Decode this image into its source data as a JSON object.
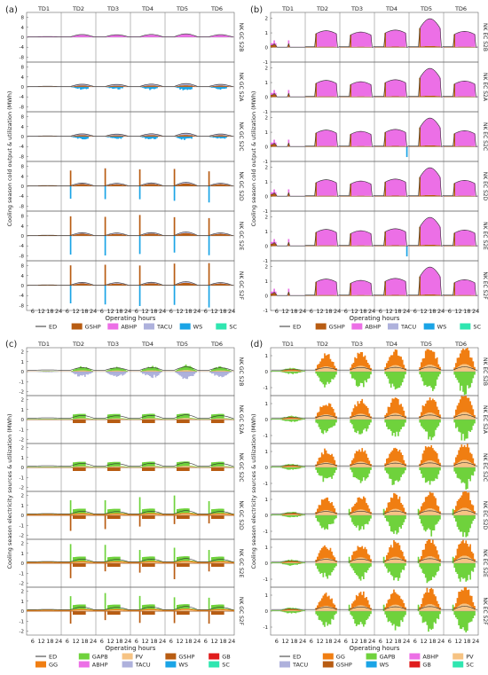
{
  "colors": {
    "ED": "#333333",
    "GSHP": "#b85c12",
    "ABHP": "#ec6fe6",
    "TACU": "#aeb1dc",
    "WS": "#1aa4e6",
    "SC": "#2fe6b0",
    "GAPB": "#6fd23c",
    "PV": "#f6c383",
    "GB": "#e01c1c",
    "GG": "#f07e12"
  },
  "chart_data": [
    {
      "panel_label": "(a)",
      "type": "area",
      "ylabel": "Cooling season cold output & utilization (MWh)",
      "xlabel": "Operating hours",
      "days": [
        "TD1",
        "TD2",
        "TD3",
        "TD4",
        "TD5",
        "TD6"
      ],
      "x_ticks": [
        "6",
        "12",
        "18",
        "24",
        "6",
        "12",
        "18",
        "24",
        "6",
        "12",
        "18",
        "24",
        "6",
        "12",
        "18",
        "24",
        "6",
        "12",
        "18",
        "24",
        "6",
        "12",
        "18",
        "24"
      ],
      "y_ticks": [
        "8",
        "4",
        "0",
        "-4",
        "-8"
      ],
      "ylim": [
        -10,
        10
      ],
      "rows": [
        "NK GC S2B",
        "NK GC S2A",
        "NK GC S2C",
        "NK GC S2D",
        "NK GC S2E",
        "NK GC S2F"
      ],
      "legend": [
        "ED",
        "GSHP",
        "ABHP",
        "TACU",
        "WS",
        "SC"
      ]
    },
    {
      "panel_label": "(b)",
      "type": "area",
      "ylabel": "Cooling season cold output & utilization (MWh)",
      "xlabel": "Operating hours",
      "days": [
        "TD1",
        "TD2",
        "TD3",
        "TD4",
        "TD5",
        "TD6"
      ],
      "x_ticks": [
        "6",
        "12",
        "18",
        "24",
        "6",
        "12",
        "18",
        "24",
        "6",
        "12",
        "18",
        "24",
        "6",
        "12",
        "18",
        "24",
        "6",
        "12",
        "18",
        "24",
        "6",
        "12",
        "18",
        "24"
      ],
      "y_ticks": [
        "2",
        "1",
        "0",
        "-1"
      ],
      "ylim": [
        -1,
        2.4
      ],
      "rows": [
        "NK EC S2B",
        "NK EC S2A",
        "NK EC S2C",
        "NK EC S2D",
        "NK EC S2E",
        "NK EC S2F"
      ],
      "legend": [
        "ED",
        "GSHP",
        "ABHP",
        "TACU",
        "WS",
        "SC"
      ]
    },
    {
      "panel_label": "(c)",
      "type": "area",
      "ylabel": "Cooling season electricity sources & utilization (MWh)",
      "xlabel": "Operating hours",
      "days": [
        "TD1",
        "TD2",
        "TD3",
        "TD4",
        "TD5",
        "TD6"
      ],
      "x_ticks": [
        "6",
        "12",
        "18",
        "24",
        "6",
        "12",
        "18",
        "24",
        "6",
        "12",
        "18",
        "24",
        "6",
        "12",
        "18",
        "24",
        "6",
        "12",
        "18",
        "24",
        "6",
        "12",
        "18",
        "24"
      ],
      "y_ticks": [
        "2",
        "1",
        "0",
        "-1",
        "-2"
      ],
      "ylim": [
        -2.4,
        2.4
      ],
      "rows": [
        "NK GC S2B",
        "NK GC S2A",
        "NK GC S2C",
        "NK GC S2D",
        "NK GC S2E",
        "NK GC S2F"
      ],
      "legend": [
        "ED",
        "GAPB",
        "PV",
        "GSHP",
        "GB",
        "GG",
        "ABHP",
        "TACU",
        "WS",
        "SC"
      ]
    },
    {
      "panel_label": "(d)",
      "type": "area",
      "ylabel": "Cooling season electricity sources & utilization (MWh)",
      "xlabel": "Operating hours",
      "days": [
        "TD1",
        "TD2",
        "TD3",
        "TD4",
        "TD5",
        "TD6"
      ],
      "x_ticks": [
        "6",
        "12",
        "18",
        "24",
        "6",
        "12",
        "18",
        "24",
        "6",
        "12",
        "18",
        "24",
        "6",
        "12",
        "18",
        "24",
        "6",
        "12",
        "18",
        "24",
        "6",
        "12",
        "18",
        "24"
      ],
      "y_ticks": [
        "1",
        "0",
        "-1"
      ],
      "ylim": [
        -1.5,
        1.5
      ],
      "rows": [
        "NK EC S2B",
        "NK EC S2A",
        "NK EC S2C",
        "NK EC S2D",
        "NK EC S2E",
        "NK EC S2F"
      ],
      "legend": [
        "ED",
        "GG",
        "GAPB",
        "ABHP",
        "PV",
        "TACU",
        "GSHP",
        "WS",
        "GB",
        "SC"
      ]
    }
  ]
}
